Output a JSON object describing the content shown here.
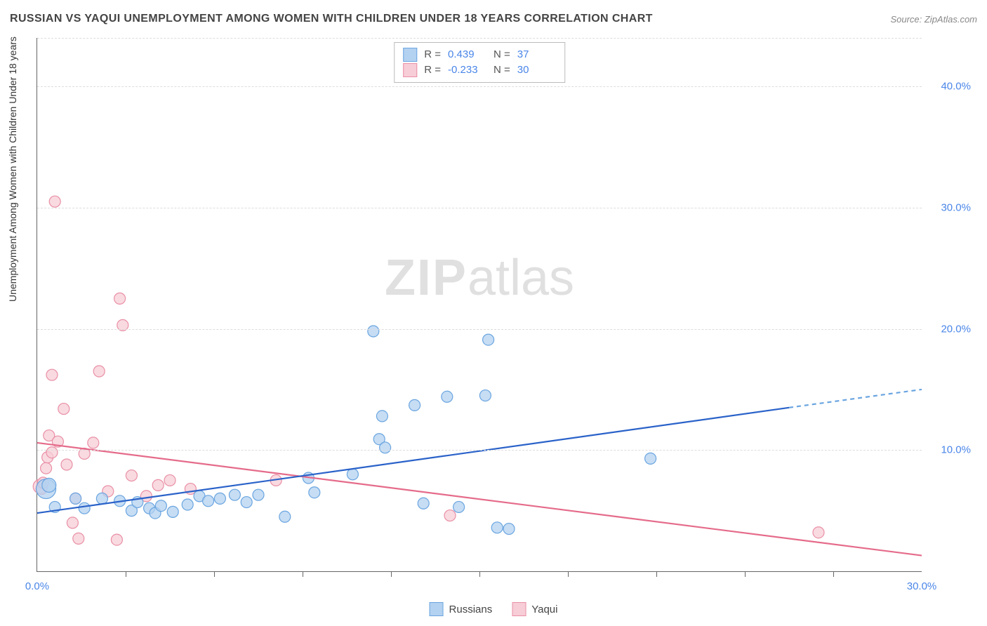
{
  "chart": {
    "type": "scatter",
    "title": "RUSSIAN VS YAQUI UNEMPLOYMENT AMONG WOMEN WITH CHILDREN UNDER 18 YEARS CORRELATION CHART",
    "source": "Source: ZipAtlas.com",
    "ylabel": "Unemployment Among Women with Children Under 18 years",
    "watermark_bold": "ZIP",
    "watermark_light": "atlas",
    "background_color": "#ffffff",
    "grid_color": "#dddddd",
    "axis_color": "#666666",
    "xlim": [
      0,
      30
    ],
    "ylim": [
      0,
      44
    ],
    "xtick_labels": [
      "0.0%",
      "30.0%"
    ],
    "xtick_positions": [
      0,
      30
    ],
    "xtick_minor_positions": [
      3,
      6,
      9,
      12,
      15,
      18,
      21,
      24,
      27
    ],
    "ytick_labels": [
      "10.0%",
      "20.0%",
      "30.0%",
      "40.0%"
    ],
    "ytick_positions": [
      10,
      20,
      30,
      40
    ],
    "yaxis_label_color": "#4a86e8",
    "label_fontsize": 15,
    "title_fontsize": 16,
    "series": [
      {
        "name": "Russians",
        "color_fill": "#b3d1f0",
        "color_stroke": "#6aa5e0",
        "trend_color": "#2a62c9",
        "trend_dash_color": "#6aa5e0",
        "R": "0.439",
        "N": "37",
        "trend": {
          "x1": 0,
          "y1": 4.8,
          "x2": 25.5,
          "y2": 13.5,
          "x_dash_to": 30,
          "y_dash_to": 15.0
        },
        "points": [
          [
            0.3,
            6.8,
            14
          ],
          [
            0.4,
            7.1,
            10
          ],
          [
            0.6,
            5.3,
            8
          ],
          [
            1.3,
            6.0,
            8
          ],
          [
            1.6,
            5.2,
            8
          ],
          [
            2.2,
            6.0,
            8
          ],
          [
            2.8,
            5.8,
            8
          ],
          [
            3.2,
            5.0,
            8
          ],
          [
            3.4,
            5.7,
            8
          ],
          [
            3.8,
            5.2,
            8
          ],
          [
            4.0,
            4.8,
            8
          ],
          [
            4.2,
            5.4,
            8
          ],
          [
            4.6,
            4.9,
            8
          ],
          [
            5.1,
            5.5,
            8
          ],
          [
            5.5,
            6.2,
            8
          ],
          [
            5.8,
            5.8,
            8
          ],
          [
            6.2,
            6.0,
            8
          ],
          [
            6.7,
            6.3,
            8
          ],
          [
            7.1,
            5.7,
            8
          ],
          [
            7.5,
            6.3,
            8
          ],
          [
            8.4,
            4.5,
            8
          ],
          [
            9.2,
            7.7,
            8
          ],
          [
            9.4,
            6.5,
            8
          ],
          [
            10.7,
            8.0,
            8
          ],
          [
            11.4,
            19.8,
            8
          ],
          [
            11.6,
            10.9,
            8
          ],
          [
            11.7,
            12.8,
            8
          ],
          [
            11.8,
            10.2,
            8
          ],
          [
            12.8,
            13.7,
            8
          ],
          [
            13.1,
            5.6,
            8
          ],
          [
            13.9,
            14.4,
            8
          ],
          [
            14.3,
            5.3,
            8
          ],
          [
            15.2,
            14.5,
            8
          ],
          [
            15.6,
            3.6,
            8
          ],
          [
            16.0,
            3.5,
            8
          ],
          [
            15.3,
            19.1,
            8
          ],
          [
            20.8,
            9.3,
            8
          ]
        ]
      },
      {
        "name": "Yaqui",
        "color_fill": "#f7cdd7",
        "color_stroke": "#e98fa5",
        "trend_color": "#e56b8a",
        "R": "-0.233",
        "N": "30",
        "trend": {
          "x1": 0,
          "y1": 10.6,
          "x2": 30,
          "y2": 1.3
        },
        "points": [
          [
            0.1,
            7.0,
            10
          ],
          [
            0.15,
            6.8,
            8
          ],
          [
            0.2,
            7.3,
            8
          ],
          [
            0.3,
            8.5,
            8
          ],
          [
            0.35,
            9.4,
            8
          ],
          [
            0.4,
            11.2,
            8
          ],
          [
            0.5,
            9.8,
            8
          ],
          [
            0.5,
            16.2,
            8
          ],
          [
            0.6,
            30.5,
            8
          ],
          [
            0.7,
            10.7,
            8
          ],
          [
            0.9,
            13.4,
            8
          ],
          [
            1.0,
            8.8,
            8
          ],
          [
            1.2,
            4.0,
            8
          ],
          [
            1.3,
            6.0,
            8
          ],
          [
            1.4,
            2.7,
            8
          ],
          [
            1.6,
            9.7,
            8
          ],
          [
            1.9,
            10.6,
            8
          ],
          [
            2.1,
            16.5,
            8
          ],
          [
            2.4,
            6.6,
            8
          ],
          [
            2.8,
            22.5,
            8
          ],
          [
            2.9,
            20.3,
            8
          ],
          [
            2.7,
            2.6,
            8
          ],
          [
            3.2,
            7.9,
            8
          ],
          [
            3.7,
            6.2,
            8
          ],
          [
            4.1,
            7.1,
            8
          ],
          [
            4.5,
            7.5,
            8
          ],
          [
            5.2,
            6.8,
            8
          ],
          [
            8.1,
            7.5,
            8
          ],
          [
            14.0,
            4.6,
            8
          ],
          [
            26.5,
            3.2,
            8
          ]
        ]
      }
    ],
    "bottom_legend": [
      {
        "label": "Russians",
        "fill": "#b3d1f0",
        "stroke": "#6aa5e0"
      },
      {
        "label": "Yaqui",
        "fill": "#f7cdd7",
        "stroke": "#e98fa5"
      }
    ]
  }
}
